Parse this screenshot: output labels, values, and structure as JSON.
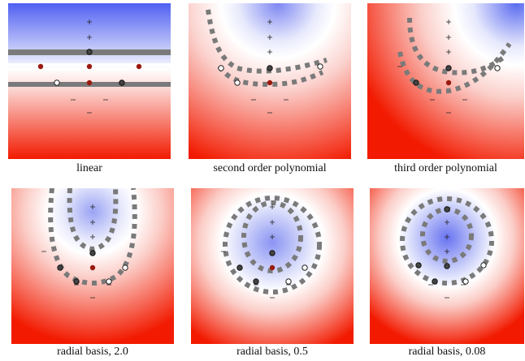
{
  "panels": [
    {
      "caption": "linear"
    },
    {
      "caption": "second order polynomial"
    },
    {
      "caption": "third order polynomial"
    },
    {
      "caption": "radial basis, 2.0"
    },
    {
      "caption": "radial basis, 0.5"
    },
    {
      "caption": "radial basis, 0.08"
    }
  ],
  "colors": {
    "positive_region": "#4a5cf0",
    "negative_region": "#f21a00",
    "boundary": "#7a7a7a",
    "support_vector_negative": "#9a1a10"
  }
}
